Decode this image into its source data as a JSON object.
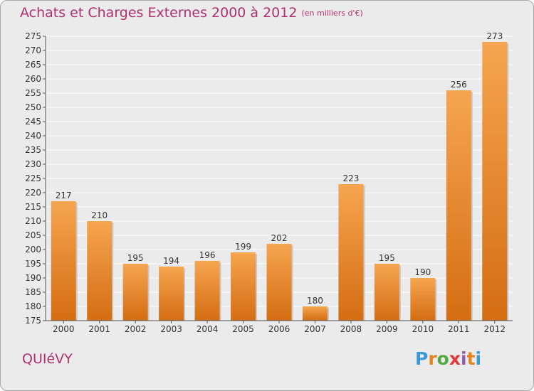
{
  "title": "Achats et Charges Externes 2000 à 2012",
  "unit": "(en milliers d'€)",
  "town": "QUIéVY",
  "logo": {
    "text": "Proxiti",
    "colors": [
      "#3a9ad9",
      "#e2841f",
      "#54a944",
      "#e23b3b",
      "#8e5bb0",
      "#e2841f",
      "#3a9ad9"
    ]
  },
  "colors": {
    "bar_light": "#f6a550",
    "bar_dark": "#d46d12",
    "title": "#b0306f",
    "background": "#ebebeb",
    "grid": "#ffffff"
  },
  "chart_data": {
    "type": "bar",
    "title": "Achats et Charges Externes 2000 à 2012",
    "categories": [
      "2000",
      "2001",
      "2002",
      "2003",
      "2004",
      "2005",
      "2006",
      "2007",
      "2008",
      "2009",
      "2010",
      "2011",
      "2012"
    ],
    "values": [
      217,
      210,
      195,
      194,
      196,
      199,
      202,
      180,
      223,
      195,
      190,
      256,
      273
    ],
    "xlabel": "",
    "ylabel": "",
    "ylim": [
      175,
      275
    ],
    "yticks": [
      175,
      180,
      185,
      190,
      195,
      200,
      205,
      210,
      215,
      220,
      225,
      230,
      235,
      240,
      245,
      250,
      255,
      260,
      265,
      270,
      275
    ],
    "grid": true,
    "data_labels": true
  }
}
